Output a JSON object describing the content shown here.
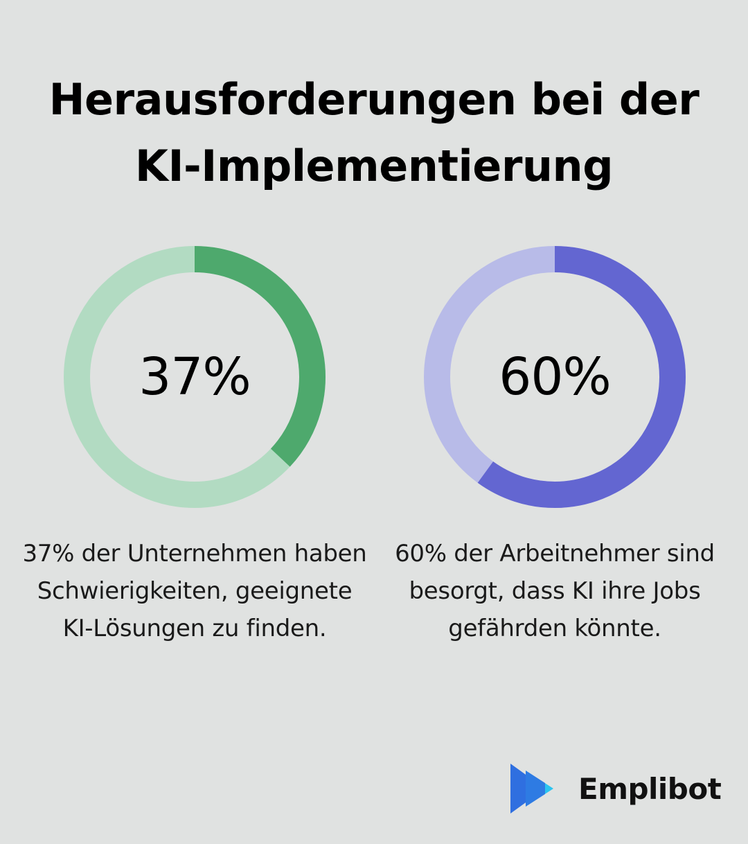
{
  "header": {
    "title_line1": "Herausforderungen bei der",
    "title_line2": "KI-Implementierung"
  },
  "chart_data": [
    {
      "type": "pie",
      "label": "37%",
      "value": 37,
      "total": 100,
      "caption": "37% der Unternehmen haben Schwierigkeiten, geeignete KI-Lösungen zu finden.",
      "colors": {
        "value": "#4ea96d",
        "rest": "#b2dbc2"
      }
    },
    {
      "type": "pie",
      "label": "60%",
      "value": 60,
      "total": 100,
      "caption": "60% der Arbeitnehmer sind besorgt, dass KI ihre Jobs gefährden könnte.",
      "colors": {
        "value": "#6366d1",
        "rest": "#b8bbe8"
      }
    }
  ],
  "brand": {
    "name": "Emplibot",
    "logo_icon": "play-arrows-icon",
    "colors": {
      "dark": "#2f6fe0",
      "light": "#2bc4f0"
    }
  }
}
